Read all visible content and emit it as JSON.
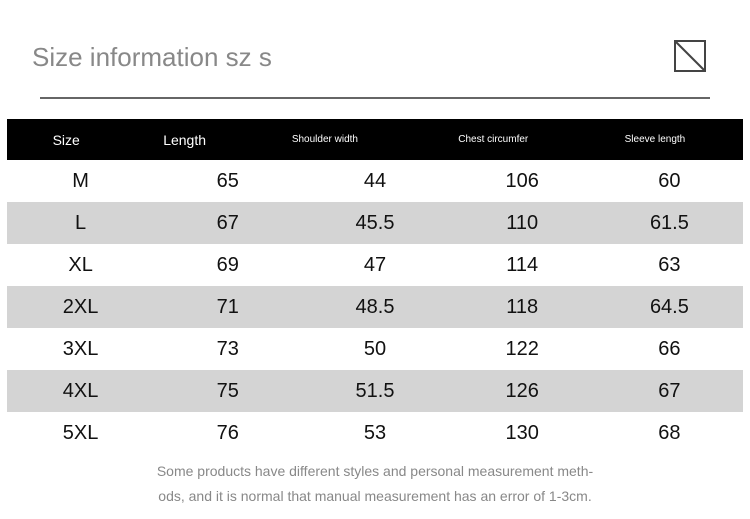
{
  "header": {
    "title": "Size information sz s"
  },
  "table": {
    "columns": [
      "Size",
      "Length",
      "Shoulder width",
      "Chest circumfer",
      "Sleeve length"
    ],
    "rows": [
      [
        "M",
        "65",
        "44",
        "106",
        "60"
      ],
      [
        "L",
        "67",
        "45.5",
        "110",
        "61.5"
      ],
      [
        "XL",
        "69",
        "47",
        "114",
        "63"
      ],
      [
        "2XL",
        "71",
        "48.5",
        "118",
        "64.5"
      ],
      [
        "3XL",
        "73",
        "50",
        "122",
        "66"
      ],
      [
        "4XL",
        "75",
        "51.5",
        "126",
        "67"
      ],
      [
        "5XL",
        "76",
        "53",
        "130",
        "68"
      ]
    ]
  },
  "note": [
    "Some products have different styles and personal measurement meth-",
    "ods, and it is normal that manual measurement has an error of 1-3cm."
  ]
}
